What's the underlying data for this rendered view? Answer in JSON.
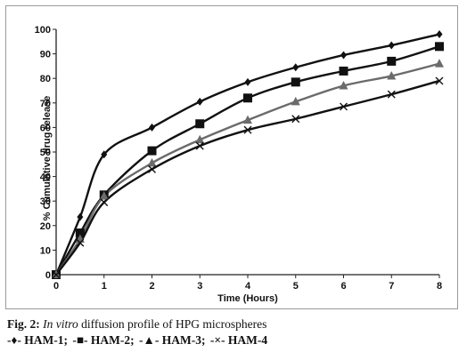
{
  "chart_data": {
    "type": "line",
    "x": [
      0,
      0.5,
      1,
      2,
      3,
      4,
      5,
      6,
      7,
      8
    ],
    "xlabel": "Time (Hours)",
    "ylabel": "% Cumulative drug release",
    "xlim": [
      0,
      8
    ],
    "ylim": [
      0,
      100
    ],
    "xticks": [
      "0",
      "1",
      "2",
      "3",
      "4",
      "5",
      "6",
      "7",
      "8"
    ],
    "yticks": [
      "0",
      "10",
      "20",
      "30",
      "40",
      "50",
      "60",
      "70",
      "80",
      "90",
      "100"
    ],
    "grid": false,
    "series": [
      {
        "name": "HAM-1",
        "marker": "diamond",
        "color": "#111111",
        "values": [
          0,
          23.5,
          49,
          60,
          70.5,
          78.5,
          84.5,
          89.5,
          93.5,
          98
        ]
      },
      {
        "name": "HAM-2",
        "marker": "square",
        "color": "#111111",
        "values": [
          0,
          17,
          32.5,
          50.5,
          61.5,
          72,
          78.5,
          83,
          87,
          93
        ]
      },
      {
        "name": "HAM-3",
        "marker": "triangle",
        "color": "#6b6b6b",
        "values": [
          0,
          14.5,
          32,
          45.5,
          55,
          63,
          70.5,
          77,
          81,
          86
        ]
      },
      {
        "name": "HAM-4",
        "marker": "cross",
        "color": "#111111",
        "values": [
          0,
          13,
          29.5,
          43,
          52.5,
          59,
          63.5,
          68.5,
          73.5,
          79
        ]
      }
    ]
  },
  "caption": {
    "fig_label": "Fig. 2:",
    "italic": "In vitro",
    "rest": " diffusion profile of HPG microspheres",
    "legend": [
      {
        "symbol": "-♦-",
        "name": "HAM-1;"
      },
      {
        "symbol": "-■-",
        "name": "HAM-2;"
      },
      {
        "symbol": "-▲-",
        "name": "HAM-3;"
      },
      {
        "symbol": "-×-",
        "name": "HAM-4"
      }
    ]
  }
}
